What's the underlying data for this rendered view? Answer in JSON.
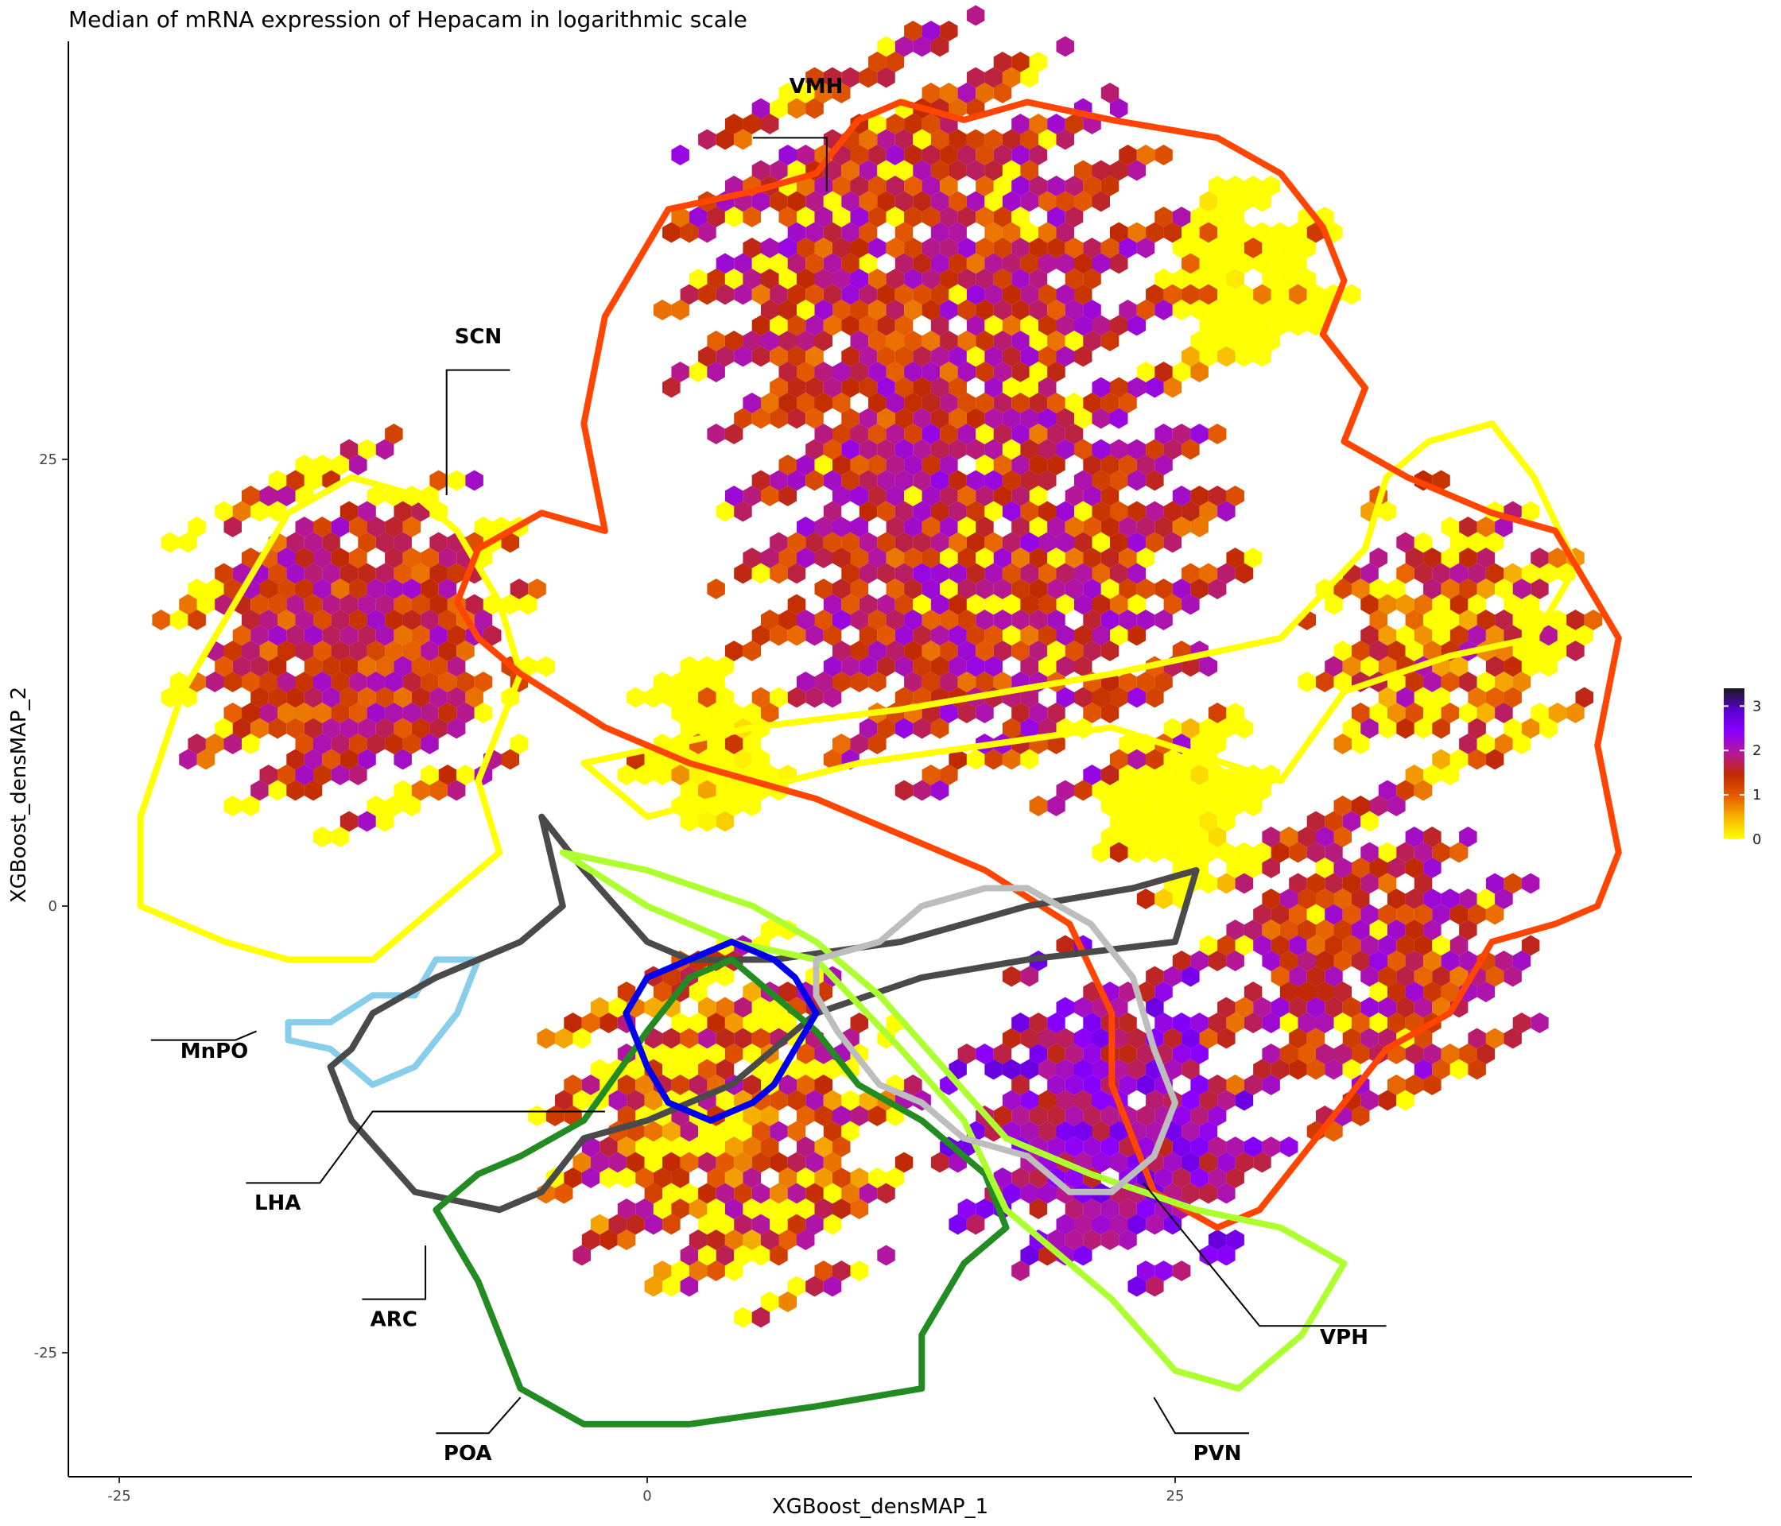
{
  "chart_data": {
    "type": "heatmap",
    "title": "Median of mRNA expression of Hepacam in logarithmic scale",
    "xlabel": "XGBoost_densMAP_1",
    "ylabel": "XGBoost_densMAP_2",
    "xlim": [
      -27,
      49
    ],
    "ylim": [
      -32,
      48
    ],
    "x_ticks": [
      -25,
      0,
      25
    ],
    "y_ticks": [
      -25,
      0,
      25
    ],
    "x_tick_labels": [
      "-25",
      "0",
      "25"
    ],
    "y_tick_labels": [
      "-25",
      "0",
      "25"
    ],
    "grid": false,
    "legend": {
      "position": "right",
      "title": "",
      "min": 0,
      "max": 3.4,
      "ticks": [
        0,
        1,
        2,
        3
      ],
      "tick_labels": [
        "0",
        "1",
        "2",
        "3"
      ]
    },
    "colorscale": [
      "#ffff00",
      "#f7b500",
      "#e65c00",
      "#c12a00",
      "#b5179a",
      "#8b00ff",
      "#5a00d0",
      "#1a1a1a"
    ],
    "hex_cells": [
      {
        "center": [
          -14,
          15
        ],
        "radius": 9,
        "level": 1.4,
        "mix": "red-purple-yellow-edge"
      },
      {
        "center": [
          13,
          35
        ],
        "radius": 12,
        "level": 1.8,
        "mix": "purple-red"
      },
      {
        "center": [
          28,
          35
        ],
        "radius": 5,
        "level": 0,
        "mix": "yellow"
      },
      {
        "center": [
          16,
          20
        ],
        "radius": 12,
        "level": 1.4,
        "mix": "red-purple"
      },
      {
        "center": [
          3,
          9
        ],
        "radius": 4,
        "level": 0,
        "mix": "yellow"
      },
      {
        "center": [
          25,
          6
        ],
        "radius": 5,
        "level": 0,
        "mix": "yellow"
      },
      {
        "center": [
          38,
          15
        ],
        "radius": 7,
        "level": 1.2,
        "mix": "red-yellow"
      },
      {
        "center": [
          34,
          -3
        ],
        "radius": 8,
        "level": 1.3,
        "mix": "red-purple"
      },
      {
        "center": [
          4,
          -12
        ],
        "radius": 9,
        "level": 1.4,
        "mix": "red-yellow"
      },
      {
        "center": [
          22,
          -12
        ],
        "radius": 8,
        "level": 1.9,
        "mix": "purple"
      }
    ],
    "regions": [
      {
        "name": "VMH",
        "color": "#ff4500",
        "label_xy": [
          8,
          45.5
        ],
        "leader": [
          [
            5,
            43
          ],
          [
            8.5,
            43
          ],
          [
            8.5,
            40
          ]
        ]
      },
      {
        "name": "SCN",
        "color": "#ffff00",
        "label_xy": [
          -8,
          31.5
        ],
        "leader": [
          [
            -6.5,
            30
          ],
          [
            -9.5,
            30
          ],
          [
            -9.5,
            23
          ]
        ]
      },
      {
        "name": "MnPO",
        "color": "#87ceeb",
        "label_xy": [
          -20.5,
          -8.5
        ],
        "leader": [
          [
            -23.5,
            -7.5
          ],
          [
            -19.5,
            -7.5
          ],
          [
            -18.5,
            -7
          ]
        ]
      },
      {
        "name": "LHA",
        "color": "#4a4a4a",
        "label_xy": [
          -17.5,
          -17
        ],
        "leader": [
          [
            -19,
            -15.5
          ],
          [
            -15.5,
            -15.5
          ],
          [
            -13,
            -11.5
          ],
          [
            -2,
            -11.5
          ]
        ]
      },
      {
        "name": "ARC",
        "color": "#228b22",
        "label_xy": [
          -12,
          -23.5
        ],
        "leader": [
          [
            -13.5,
            -22
          ],
          [
            -10.5,
            -22
          ],
          [
            -10.5,
            -19
          ]
        ]
      },
      {
        "name": "POA",
        "color": "#228b22",
        "label_xy": [
          -8.5,
          -31
        ],
        "leader": [
          [
            -10,
            -29.5
          ],
          [
            -7.5,
            -29.5
          ],
          [
            -6,
            -27.5
          ]
        ]
      },
      {
        "name": "PVN",
        "color": "#adff2f",
        "label_xy": [
          27,
          -31
        ],
        "leader": [
          [
            28.5,
            -29.5
          ],
          [
            25,
            -29.5
          ],
          [
            24,
            -27.5
          ]
        ]
      },
      {
        "name": "VPH",
        "color": "#bdbdbd",
        "label_xy": [
          33,
          -24.5
        ],
        "leader": [
          [
            35,
            -23.5
          ],
          [
            29,
            -23.5
          ],
          [
            23.5,
            -15.5
          ]
        ]
      },
      {
        "name": "blue-contour",
        "color": "#0000ee",
        "label_xy": null,
        "leader": null
      }
    ]
  }
}
